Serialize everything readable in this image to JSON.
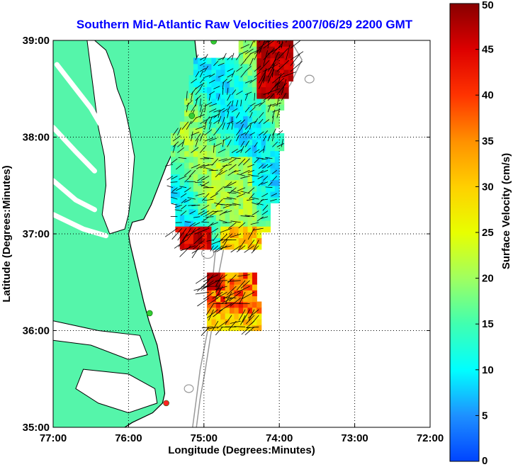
{
  "chart_data": {
    "type": "heatmap",
    "title": "Southern Mid-Atlantic Raw Velocities 2007/06/29 2200 GMT",
    "xlabel": "Longitude (Degrees:Minutes)",
    "ylabel": "Latitude (Degrees:Minutes)",
    "colorbar_label": "Surface Velocity (cm/s)",
    "xlim": [
      -77,
      -72
    ],
    "ylim": [
      35,
      39
    ],
    "clim": [
      0,
      50
    ],
    "x_ticks": [
      -77,
      -76,
      -75,
      -74,
      -73,
      -72
    ],
    "x_tick_labels": [
      "77:00",
      "76:00",
      "75:00",
      "74:00",
      "73:00",
      "72:00"
    ],
    "y_ticks": [
      35,
      36,
      37,
      38,
      39
    ],
    "y_tick_labels": [
      "35:00",
      "36:00",
      "37:00",
      "38:00",
      "39:00"
    ],
    "colorbar_ticks": [
      0,
      5,
      10,
      15,
      20,
      25,
      30,
      35,
      40,
      45,
      50
    ],
    "colorbar_tick_labels": [
      "0",
      "5",
      "10",
      "15",
      "20",
      "25",
      "30",
      "35",
      "40",
      "45",
      "50"
    ],
    "grid": true,
    "colors": {
      "title": "#0000ff",
      "land": "#55f5aa",
      "ocean": "#ffffff",
      "bathymetry": "#999999",
      "coast": "#000000",
      "vector": "#000000",
      "site_green": "#33cc33",
      "site_red": "#ff2222"
    },
    "stations": [
      {
        "lon": -74.87,
        "lat": 38.99,
        "color": "green"
      },
      {
        "lon": -75.16,
        "lat": 38.22,
        "color": "green"
      },
      {
        "lon": -75.72,
        "lat": 36.18,
        "color": "green"
      },
      {
        "lon": -75.5,
        "lat": 35.25,
        "color": "red"
      }
    ],
    "velocity_regions": [
      {
        "name": "north",
        "lon": [
          -75.4,
          -73.8
        ],
        "lat": [
          36.8,
          39.0
        ]
      },
      {
        "name": "south",
        "lon": [
          -75.1,
          -74.0
        ],
        "lat": [
          36.0,
          36.6
        ]
      }
    ]
  }
}
